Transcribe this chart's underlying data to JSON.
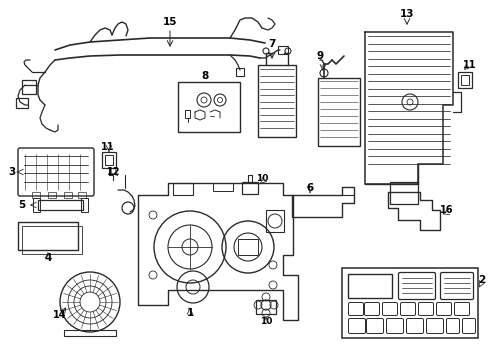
{
  "bg_color": "#ffffff",
  "line_color": "#2a2a2a",
  "text_color": "#000000",
  "fig_width": 4.9,
  "fig_height": 3.6,
  "dpi": 100
}
